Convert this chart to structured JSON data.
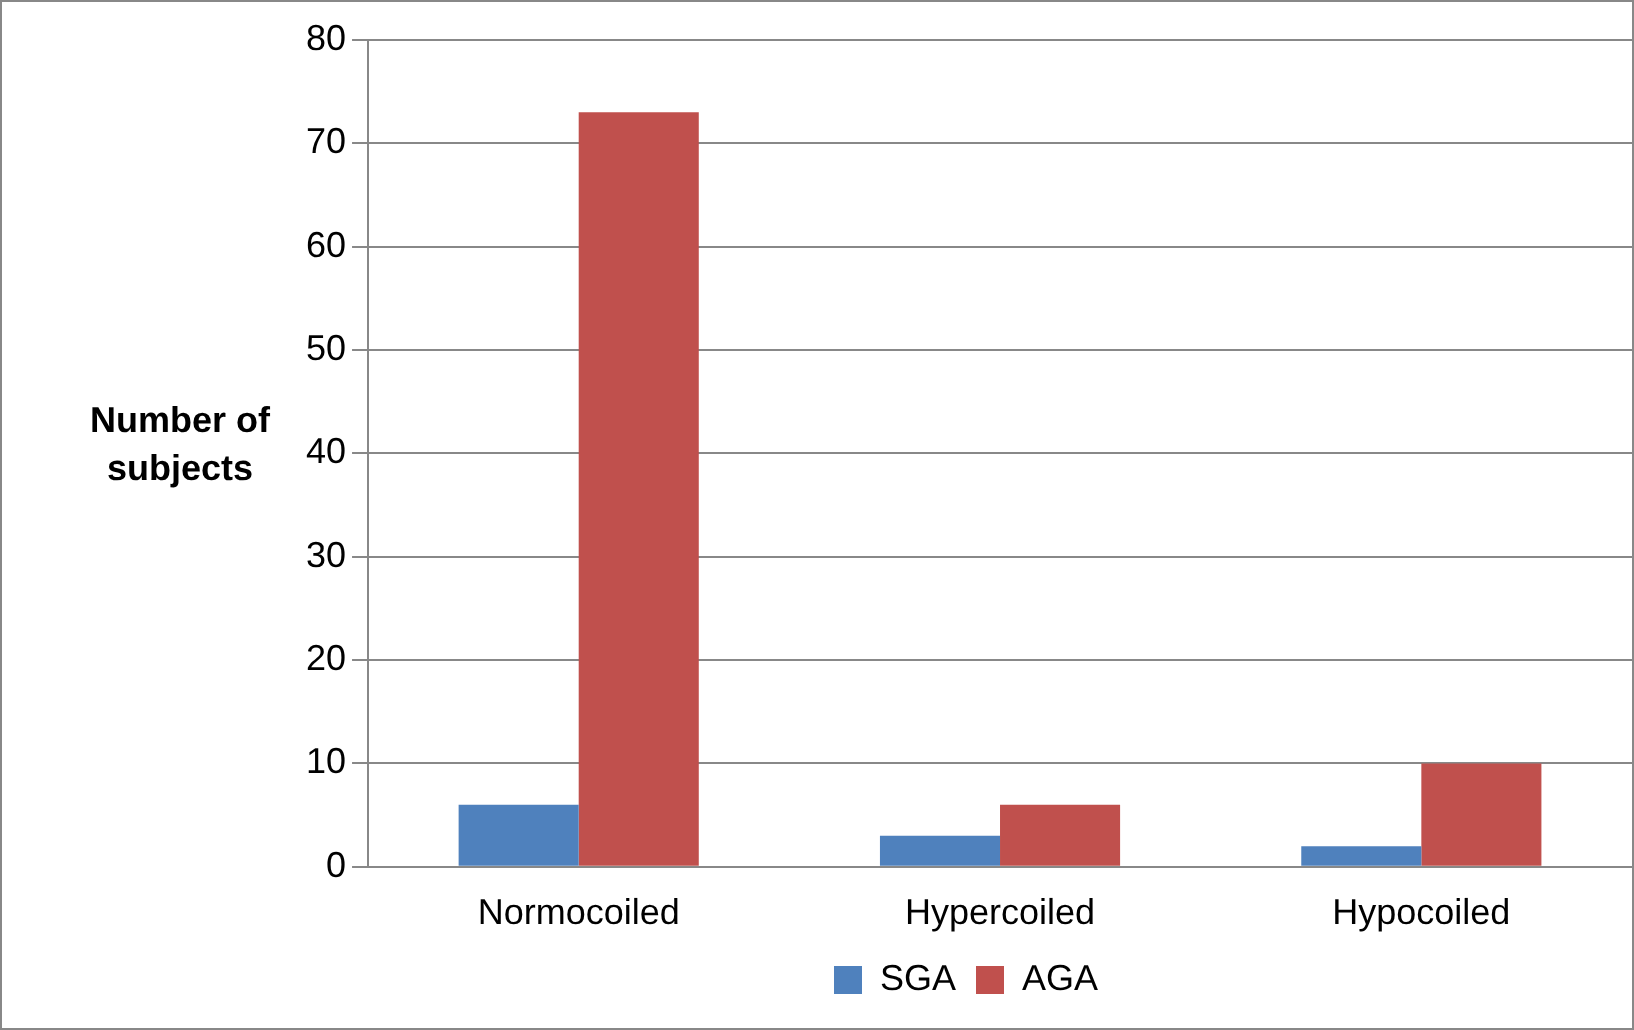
{
  "chart_data": {
    "type": "bar",
    "ylabel": "Number of subjects",
    "categories": [
      "Normocoiled",
      "Hypercoiled",
      "Hypocoiled"
    ],
    "series": [
      {
        "name": "SGA",
        "color": "#4f81bd",
        "values": [
          6,
          3,
          2
        ]
      },
      {
        "name": "AGA",
        "color": "#c0504d",
        "values": [
          73,
          6,
          10
        ]
      }
    ],
    "ylim": [
      0,
      80
    ],
    "yticks": [
      0,
      10,
      20,
      30,
      40,
      50,
      60,
      70,
      80
    ],
    "grid": "y",
    "legend": "bottom"
  }
}
